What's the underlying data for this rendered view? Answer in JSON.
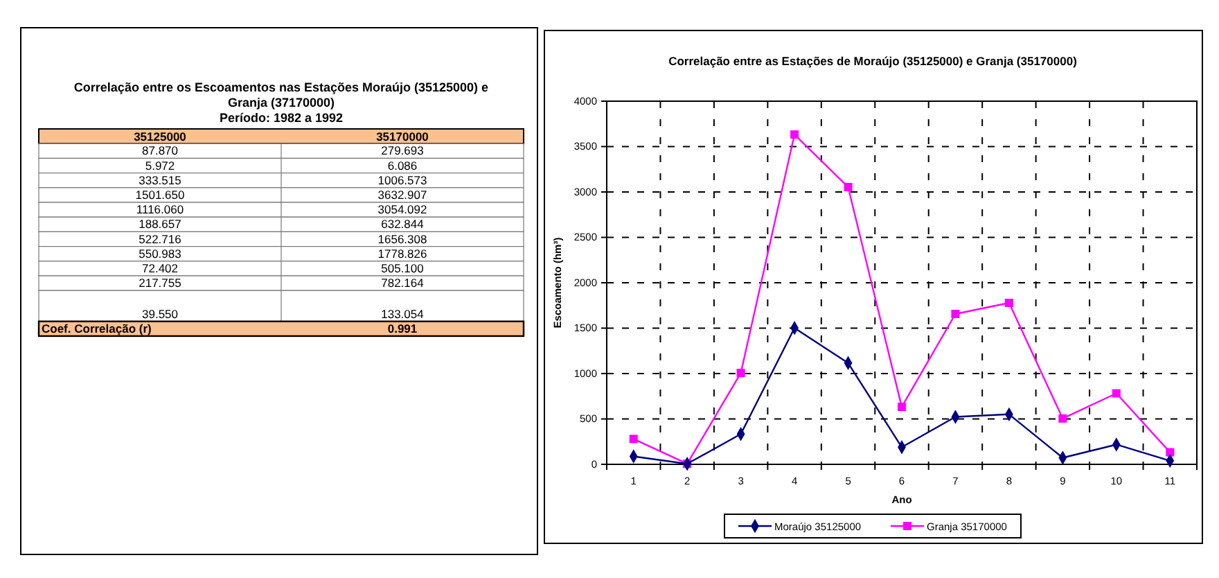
{
  "chart_data": [
    {
      "type": "other",
      "title": "Correlação entre os Escoamentos nas Estações Moraújo (35125000) e Granja (37170000)",
      "subtitle": "Período: 1982 a 1992",
      "categories": [
        "35125000",
        "35170000"
      ],
      "annotations": [
        "87.870",
        "279.693",
        "5.972",
        "6.086",
        "333.515",
        "1006.573",
        "1501.650",
        "3632.907",
        "1116.060",
        "3054.092",
        "188.657",
        "632.844",
        "522.716",
        "1656.308",
        "550.983",
        "1778.826",
        "72.402",
        "505.100",
        "217.755",
        "782.164",
        "39.550",
        "133.054",
        "Coef. Correlação (r)",
        "0.991"
      ]
    },
    {
      "type": "line",
      "title": "Correlação entre as Estações de Moraújo (35125000) e Granja (35170000)",
      "xlabel": "Ano",
      "ylabel": "Escoamento (hm³)",
      "categories": [
        "1",
        "2",
        "3",
        "4",
        "5",
        "6",
        "7",
        "8",
        "9",
        "10",
        "11"
      ],
      "series": [
        {
          "name": "Moraújo 35125000",
          "color": "#000080",
          "marker": "diamond",
          "values": [
            87.87,
            5.972,
            333.515,
            1501.65,
            1116.06,
            188.657,
            522.716,
            550.983,
            72.402,
            217.755,
            39.55
          ]
        },
        {
          "name": "Granja 35170000",
          "color": "#ff00ff",
          "marker": "square",
          "values": [
            279.693,
            6.086,
            1006.573,
            3632.907,
            3054.092,
            632.844,
            1656.308,
            1778.826,
            505.1,
            782.164,
            133.054
          ]
        }
      ],
      "ylim": [
        0,
        4000
      ],
      "yticks": [
        0,
        500,
        1000,
        1500,
        2000,
        2500,
        3000,
        3500,
        4000
      ],
      "grid": true,
      "legend": "bottom",
      "line_style": "solid"
    }
  ]
}
